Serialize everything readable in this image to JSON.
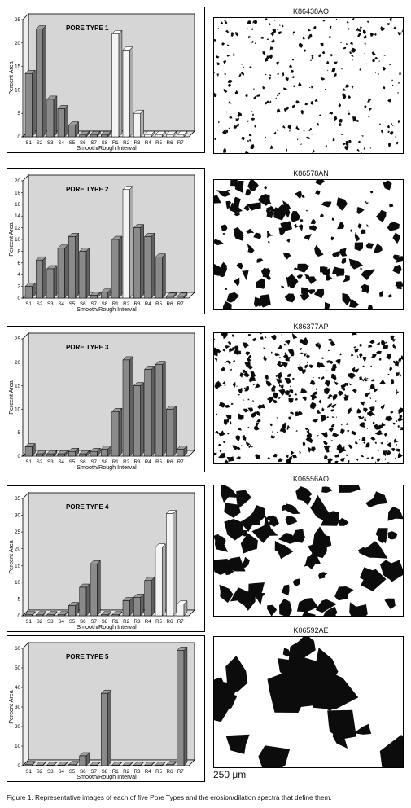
{
  "chart_data": [
    {
      "type": "bar",
      "title": "PORE TYPE 1",
      "ylabel": "Percent Area",
      "xlabel": "Smooth/Rough Interval",
      "ylim": [
        0,
        25
      ],
      "yticks": [
        0,
        5,
        10,
        15,
        20,
        25
      ],
      "categories": [
        "S1",
        "S2",
        "S3",
        "S4",
        "S5",
        "S6",
        "S7",
        "S8",
        "R1",
        "R2",
        "R3",
        "R4",
        "R5",
        "R6",
        "R7"
      ],
      "values": [
        13.5,
        23,
        8,
        6,
        2.5,
        0.5,
        0.5,
        0.5,
        22,
        18.5,
        5,
        0.5,
        0.5,
        0.5,
        0.5
      ]
    },
    {
      "type": "bar",
      "title": "PORE TYPE 2",
      "ylabel": "Percent Area",
      "xlabel": "Smooth/Rough Interval",
      "ylim": [
        0,
        20
      ],
      "yticks": [
        0,
        2,
        4,
        6,
        8,
        10,
        12,
        14,
        16,
        18,
        20
      ],
      "categories": [
        "S1",
        "S2",
        "S3",
        "S4",
        "S5",
        "S6",
        "S7",
        "S8",
        "R1",
        "R2",
        "R3",
        "R4",
        "R5",
        "R6",
        "R7"
      ],
      "values": [
        2,
        6.5,
        5,
        8.5,
        10.5,
        8,
        0.5,
        1,
        10,
        18.5,
        12,
        10.5,
        7,
        0.3,
        0.3
      ]
    },
    {
      "type": "bar",
      "title": "PORE TYPE 3",
      "ylabel": "Percent Area",
      "xlabel": "Smooth/Rough Interval",
      "ylim": [
        0,
        25
      ],
      "yticks": [
        0,
        5,
        10,
        15,
        20,
        25
      ],
      "categories": [
        "S1",
        "S2",
        "S3",
        "S4",
        "S5",
        "S6",
        "S7",
        "S8",
        "R1",
        "R2",
        "R3",
        "R4",
        "R5",
        "R6",
        "R7"
      ],
      "values": [
        2,
        0.5,
        0.5,
        0.5,
        1,
        0.5,
        1,
        1.5,
        9.5,
        20.5,
        15,
        18.5,
        19.5,
        10,
        1.5
      ]
    },
    {
      "type": "bar",
      "title": "PORE TYPE 4",
      "ylabel": "Percent Area",
      "xlabel": "Smooth/Rough Interval",
      "ylim": [
        0,
        35
      ],
      "yticks": [
        0,
        5,
        10,
        15,
        20,
        25,
        30,
        35
      ],
      "categories": [
        "S1",
        "S2",
        "S3",
        "S4",
        "S5",
        "S6",
        "S7",
        "S8",
        "R1",
        "R2",
        "R3",
        "R4",
        "R5",
        "R6",
        "R7"
      ],
      "values": [
        0.3,
        0.3,
        0.3,
        0.3,
        3,
        8.5,
        15.5,
        0.3,
        0.3,
        4.5,
        5.5,
        10.5,
        20.5,
        30.5,
        3.5
      ]
    },
    {
      "type": "bar",
      "title": "PORE TYPE 5",
      "ylabel": "Percent Area",
      "xlabel": "Smooth/Rough Interval",
      "ylim": [
        0,
        60
      ],
      "yticks": [
        0,
        10,
        20,
        30,
        40,
        50,
        60
      ],
      "categories": [
        "S1",
        "S2",
        "S3",
        "S4",
        "S5",
        "S6",
        "S7",
        "S8",
        "R1",
        "R2",
        "R3",
        "R4",
        "R5",
        "R6",
        "R7"
      ],
      "values": [
        0.5,
        0.3,
        0.3,
        0.3,
        0.5,
        5,
        0.3,
        37,
        0.3,
        0.3,
        0.3,
        0.3,
        0.3,
        0.5,
        59
      ]
    }
  ],
  "images": [
    {
      "label": "K86438AO"
    },
    {
      "label": "K86578AN"
    },
    {
      "label": "K86377AP"
    },
    {
      "label": "K06556AO"
    },
    {
      "label": "K06592AE"
    }
  ],
  "scale_bar": "250 μm",
  "caption": "Figure 1. Representative images of each of five Pore Types and the erosion/dilation spectra that define them.",
  "colors": {
    "plot_bg": "#d6d6d6",
    "bar_dark_front": "#8a8a8a",
    "bar_light_front": "#f4f4f4",
    "pore": "#0c0c0c"
  }
}
